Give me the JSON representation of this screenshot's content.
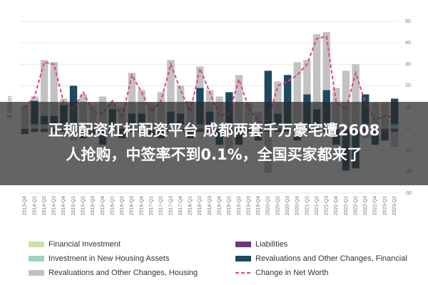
{
  "chart_data": {
    "type": "bar",
    "stacked": true,
    "y_label": "$ Billion",
    "categories": [
      "2013-Q4",
      "2014-Q1",
      "2014-Q2",
      "2014-Q3",
      "2014-Q4",
      "2015-Q1",
      "2015-Q2",
      "2015-Q3",
      "2015-Q4",
      "2016-Q1",
      "2016-Q2",
      "2016-Q3",
      "2016-Q4",
      "2017-Q1",
      "2017-Q2",
      "2017-Q3",
      "2017-Q4",
      "2018-Q1",
      "2018-Q2",
      "2018-Q3",
      "2018-Q4",
      "2019-Q1",
      "2019-Q2",
      "2019-Q3",
      "2019-Q4",
      "2020-Q1",
      "2020-Q2",
      "2020-Q3",
      "2020-Q4",
      "2021-Q1",
      "2021-Q2",
      "2021-Q3",
      "2021-Q4",
      "2022-Q1",
      "2022-Q2",
      "2022-Q3",
      "2022-Q4",
      "2023-Q1",
      "2023-Q2"
    ],
    "series": [
      {
        "name": "Financial Investment",
        "color": "#c9e2a6",
        "values": [
          0.5,
          0.5,
          0.5,
          0.5,
          0.5,
          0.5,
          0.5,
          0.5,
          0.5,
          0.5,
          0.5,
          0.5,
          0.5,
          0.5,
          0.5,
          0.5,
          0.5,
          0.5,
          0.5,
          0.5,
          0.5,
          0.5,
          0.5,
          0.5,
          0.5,
          0.5,
          0.5,
          0.5,
          0.5,
          0.5,
          0.5,
          0.5,
          0.5,
          0.5,
          0.5,
          0.5,
          0.5,
          0.5,
          0.5
        ]
      },
      {
        "name": "Liabilities",
        "color": "#6b3a7d",
        "values": [
          -1.5,
          -1.5,
          -1.5,
          -1.5,
          -1.5,
          -1.5,
          -1.5,
          -1.5,
          -1.5,
          -1.5,
          -1.5,
          -1.5,
          -1.5,
          -1.5,
          -1.5,
          -1.5,
          -1.5,
          -1.5,
          -1.5,
          -1.5,
          -1.5,
          -1.5,
          -1.5,
          -1.5,
          -1.5,
          -1.5,
          -1.5,
          -1.5,
          -1.5,
          -1.5,
          -1.5,
          -1.5,
          -1.5,
          -1.5,
          -1.5,
          -1.5,
          -1.5,
          -1.5,
          -1.5
        ]
      },
      {
        "name": "Investment in New Housing Assets",
        "color": "#9fd3bf",
        "values": [
          1.5,
          1.5,
          1.5,
          1.5,
          1.5,
          1.5,
          1.5,
          1.5,
          1.5,
          1.5,
          1.5,
          1.5,
          1.5,
          1.5,
          1.5,
          1.5,
          1.5,
          1.5,
          1.5,
          1.5,
          1.5,
          1.5,
          1.5,
          1.5,
          1.5,
          1.5,
          1.5,
          1.5,
          1.5,
          1.5,
          1.5,
          1.5,
          1.5,
          1.5,
          1.5,
          1.5,
          1.5,
          1.5,
          1.5
        ]
      },
      {
        "name": "Revaluations and Other Changes, Financial",
        "color": "#1d4a5c",
        "values": [
          -1,
          11,
          4,
          4,
          9,
          18,
          -3,
          -1,
          -6,
          7,
          -3,
          5,
          5,
          -2,
          -3,
          6,
          5,
          -3,
          17,
          6,
          -6,
          15,
          -6,
          -1,
          -4,
          25,
          5,
          23,
          -4,
          14,
          7,
          16,
          -6,
          -18,
          -17,
          14,
          -6,
          -4,
          12
        ]
      },
      {
        "name": "Revaluations and Other Changes, Housing",
        "color": "#c2c2c2",
        "values": [
          9,
          2,
          26,
          25,
          3,
          -4,
          14,
          9,
          13,
          3,
          8,
          19,
          11,
          10,
          15,
          24,
          13,
          11,
          10,
          10,
          13,
          -9,
          23,
          10,
          6,
          -19,
          15,
          0,
          29,
          16,
          35,
          27,
          17,
          25,
          28,
          -3,
          10,
          10,
          -7
        ]
      },
      {
        "name": "Change in Net Worth",
        "color": "#e0457b",
        "type": "line",
        "values": [
          10,
          15,
          31,
          30,
          12,
          9,
          17,
          8,
          7,
          13,
          5,
          25,
          17,
          8,
          13,
          30,
          18,
          8,
          28,
          17,
          6,
          7,
          23,
          10,
          3,
          4,
          20,
          22,
          25,
          30,
          42,
          43,
          12,
          9,
          26,
          12,
          4,
          6,
          5
        ]
      }
    ],
    "ylim": [
      -30,
      50
    ],
    "yticks": [
      -30,
      -20,
      -10,
      0,
      10,
      20,
      30,
      40,
      50
    ],
    "grid": true
  },
  "overlay": {
    "lines": [
      "正规配资杠杆配资平台 成都两套千万豪宅遭2608",
      "人抢购，中签率不到0.1%，全国买家都来了"
    ]
  }
}
